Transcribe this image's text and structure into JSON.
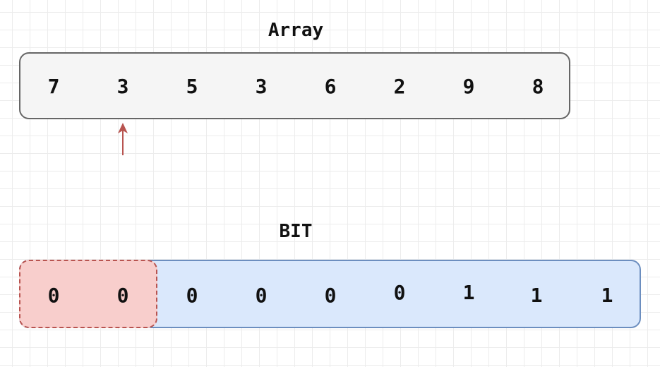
{
  "array": {
    "title": "Array",
    "values": [
      "7",
      "3",
      "5",
      "3",
      "6",
      "2",
      "9",
      "8"
    ]
  },
  "bit": {
    "title": "BIT",
    "values": [
      "0",
      "0",
      "0",
      "0",
      "0",
      "0",
      "1",
      "1",
      "1"
    ]
  },
  "colors": {
    "array_fill": "#f5f5f5",
    "array_stroke": "#666666",
    "bit_fill": "#dae8fc",
    "bit_stroke": "#6c8ebf",
    "highlight_fill": "#f8cecc",
    "highlight_stroke": "#b85450",
    "arrow": "#b85450"
  },
  "pointer": {
    "icon": "up-arrow-icon",
    "array_index": 1
  },
  "highlight": {
    "bit_indices": [
      0,
      1
    ]
  }
}
